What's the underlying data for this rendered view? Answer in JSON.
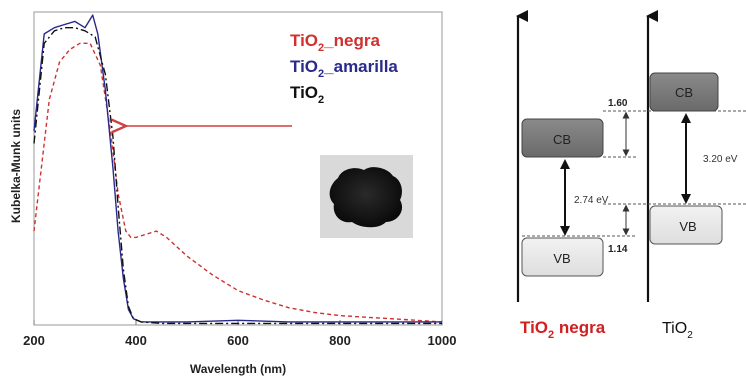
{
  "chart_data": [
    {
      "type": "line",
      "xlabel": "Wavelength (nm)",
      "ylabel": "Kubelka-Munk units",
      "xlim": [
        200,
        1000
      ],
      "ylim": [
        0,
        1.0
      ],
      "xticks": [
        "200",
        "400",
        "600",
        "800",
        "1000"
      ],
      "grid": false,
      "legend_position": "top-right",
      "series": [
        {
          "name": "TiO",
          "name_sub": "2",
          "name_suffix": "_negra",
          "color": "#d03030",
          "dash": "dashed",
          "x": [
            200,
            230,
            250,
            270,
            290,
            310,
            330,
            350,
            365,
            380,
            390,
            400,
            420,
            440,
            460,
            500,
            550,
            600,
            650,
            700,
            750,
            800,
            850,
            900,
            950,
            1000
          ],
          "y": [
            0.3,
            0.72,
            0.84,
            0.88,
            0.9,
            0.9,
            0.83,
            0.62,
            0.42,
            0.3,
            0.28,
            0.28,
            0.29,
            0.3,
            0.28,
            0.22,
            0.16,
            0.11,
            0.08,
            0.055,
            0.04,
            0.03,
            0.025,
            0.02,
            0.015,
            0.01
          ]
        },
        {
          "name": "TiO",
          "name_sub": "2",
          "name_suffix": "_amarilla",
          "color": "#2a2a8c",
          "dash": "solid",
          "x": [
            200,
            220,
            240,
            260,
            280,
            300,
            315,
            325,
            340,
            355,
            365,
            375,
            385,
            395,
            410,
            450,
            500,
            600,
            700,
            800,
            900,
            1000
          ],
          "y": [
            0.62,
            0.93,
            0.95,
            0.96,
            0.97,
            0.95,
            0.99,
            0.93,
            0.75,
            0.5,
            0.3,
            0.15,
            0.05,
            0.02,
            0.01,
            0.01,
            0.01,
            0.015,
            0.01,
            0.01,
            0.01,
            0.01
          ]
        },
        {
          "name": "TiO",
          "name_sub": "2",
          "name_suffix": "",
          "color": "#111111",
          "dash": "dashdot",
          "x": [
            200,
            220,
            240,
            260,
            280,
            300,
            320,
            340,
            355,
            365,
            375,
            385,
            395,
            410,
            450,
            500,
            600,
            700,
            800,
            900,
            1000
          ],
          "y": [
            0.58,
            0.9,
            0.94,
            0.95,
            0.95,
            0.94,
            0.92,
            0.8,
            0.6,
            0.38,
            0.18,
            0.06,
            0.02,
            0.01,
            0.005,
            0.005,
            0.005,
            0.005,
            0.005,
            0.005,
            0.005
          ]
        }
      ]
    },
    {
      "type": "diagram",
      "bands": [
        {
          "material": "TiO",
          "material_sub": "2",
          "material_suffix": " negra",
          "label_color": "#d02020",
          "cb_label": "CB",
          "vb_label": "VB",
          "gap": "2.74 eV",
          "cb_offset": "1.60",
          "vb_offset": "1.14"
        },
        {
          "material": "TiO",
          "material_sub": "2",
          "material_suffix": "",
          "label_color": "#111111",
          "cb_label": "CB",
          "vb_label": "VB",
          "gap": "3.20 eV"
        }
      ]
    }
  ]
}
